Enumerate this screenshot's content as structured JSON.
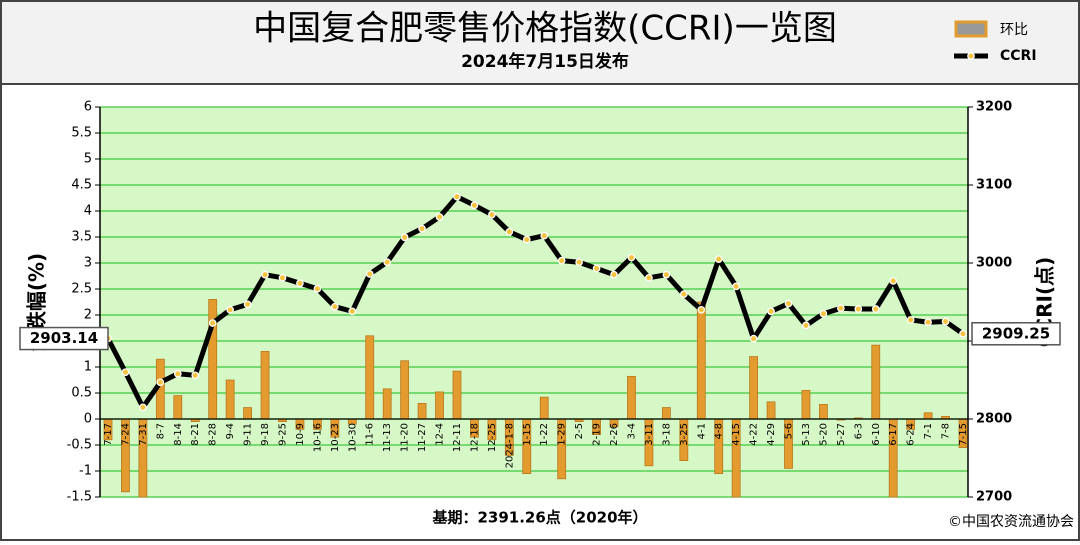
{
  "chart_data": {
    "type": "bar-line",
    "title": "中国复合肥零售价格指数(CCRI)一览图",
    "subtitle": "2024年7月15日发布",
    "y_label": "涨跌幅(%)",
    "y2_label": "CCRI(点)",
    "footnote": "基期：2391.26点（2020年）",
    "source": "©中国农资流通协会",
    "categories": [
      "7-17",
      "7-24",
      "7-31",
      "8-7",
      "8-14",
      "8-21",
      "8-28",
      "9-4",
      "9-11",
      "9-18",
      "9-25",
      "10-9",
      "10-16",
      "10-23",
      "10-30",
      "11-6",
      "11-13",
      "11-20",
      "11-27",
      "12-4",
      "12-11",
      "12-18",
      "12-25",
      "2024-1-8",
      "1-15",
      "1-22",
      "1-29",
      "2-5",
      "2-19",
      "2-26",
      "3-4",
      "3-11",
      "3-18",
      "3-25",
      "4-1",
      "4-8",
      "4-15",
      "4-22",
      "4-29",
      "5-6",
      "5-13",
      "5-20",
      "5-27",
      "6-3",
      "6-10",
      "6-17",
      "6-24",
      "7-1",
      "7-8",
      "7-15"
    ],
    "series": [
      {
        "name": "环比",
        "type": "bar",
        "color": "#e39b2f",
        "values": [
          -0.4,
          -1.4,
          -1.5,
          1.15,
          0.45,
          -0.05,
          2.3,
          0.75,
          0.22,
          1.3,
          -0.05,
          -0.2,
          -0.2,
          -0.35,
          -0.1,
          1.6,
          0.58,
          1.12,
          0.3,
          0.52,
          0.92,
          -0.35,
          -0.4,
          -0.7,
          -1.05,
          0.42,
          -1.15,
          -0.05,
          -0.3,
          -0.15,
          0.82,
          -0.9,
          0.22,
          -0.8,
          2.25,
          -1.05,
          -1.5,
          1.2,
          0.33,
          -0.95,
          0.55,
          0.28,
          -0.02,
          0.02,
          1.42,
          -1.5,
          -0.2,
          0.12,
          0.05,
          -0.55
        ]
      },
      {
        "name": "CCRI",
        "type": "line",
        "axis": "y2",
        "color": "#000000",
        "values": [
          2903.14,
          2860,
          2815,
          2847,
          2858,
          2856,
          2923,
          2940,
          2947,
          2985,
          2981,
          2974,
          2967,
          2944,
          2938,
          2986,
          3001,
          3033,
          3044,
          3059,
          3085,
          3074,
          3062,
          3040,
          3030,
          3035,
          3003,
          3001,
          2993,
          2985,
          3007,
          2981,
          2985,
          2960,
          2940,
          3005,
          2970,
          2903,
          2938,
          2948,
          2920,
          2935,
          2942,
          2941,
          2941,
          2977,
          2927,
          2924,
          2925,
          2909.25
        ]
      }
    ],
    "ylim": [
      -1.5,
      6
    ],
    "yticks": [
      -1.5,
      -1,
      -0.5,
      0,
      0.5,
      1,
      1.5,
      2,
      2.5,
      3,
      3.5,
      4,
      4.5,
      5,
      5.5,
      6
    ],
    "y2lim": [
      2700,
      3200
    ],
    "y2ticks": [
      2700,
      2800,
      2900,
      3000,
      3100,
      3200
    ],
    "grid": true,
    "legend": "upper right"
  }
}
